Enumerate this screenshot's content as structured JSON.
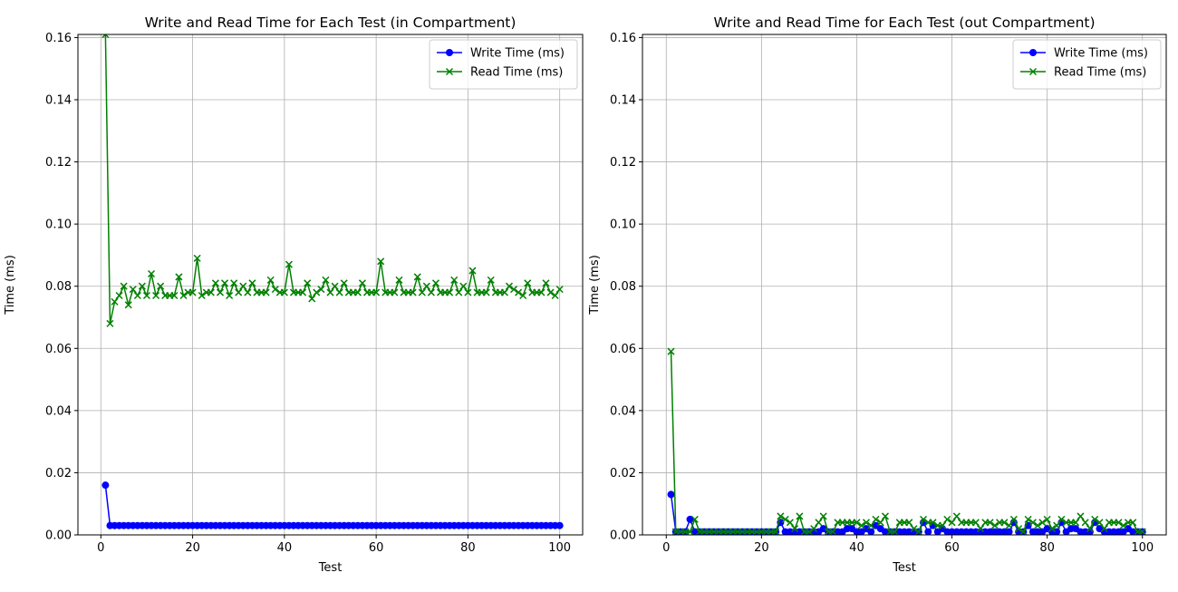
{
  "chart_data": [
    {
      "type": "line",
      "title": "Write and Read Time for Each Test (in Compartment)",
      "xlabel": "Test",
      "ylabel": "Time (ms)",
      "xlim": [
        -5,
        105
      ],
      "ylim": [
        0,
        0.161
      ],
      "xticks": [
        0,
        20,
        40,
        60,
        80,
        100
      ],
      "xtick_labels": [
        "0",
        "20",
        "40",
        "60",
        "80",
        "100"
      ],
      "yticks": [
        0.0,
        0.02,
        0.04,
        0.06,
        0.08,
        0.1,
        0.12,
        0.14,
        0.16
      ],
      "ytick_labels": [
        "0.00",
        "0.02",
        "0.04",
        "0.06",
        "0.08",
        "0.10",
        "0.12",
        "0.14",
        "0.16"
      ],
      "grid": true,
      "legend_position": "top-right",
      "x_start": 1,
      "series": [
        {
          "name": "Write Time (ms)",
          "color": "#0000ff",
          "marker": "circle",
          "values": [
            0.016,
            0.003,
            0.003,
            0.003,
            0.003,
            0.003,
            0.003,
            0.003,
            0.003,
            0.003,
            0.003,
            0.003,
            0.003,
            0.003,
            0.003,
            0.003,
            0.003,
            0.003,
            0.003,
            0.003,
            0.003,
            0.003,
            0.003,
            0.003,
            0.003,
            0.003,
            0.003,
            0.003,
            0.003,
            0.003,
            0.003,
            0.003,
            0.003,
            0.003,
            0.003,
            0.003,
            0.003,
            0.003,
            0.003,
            0.003,
            0.003,
            0.003,
            0.003,
            0.003,
            0.003,
            0.003,
            0.003,
            0.003,
            0.003,
            0.003,
            0.003,
            0.003,
            0.003,
            0.003,
            0.003,
            0.003,
            0.003,
            0.003,
            0.003,
            0.003,
            0.003,
            0.003,
            0.003,
            0.003,
            0.003,
            0.003,
            0.003,
            0.003,
            0.003,
            0.003,
            0.003,
            0.003,
            0.003,
            0.003,
            0.003,
            0.003,
            0.003,
            0.003,
            0.003,
            0.003,
            0.003,
            0.003,
            0.003,
            0.003,
            0.003,
            0.003,
            0.003,
            0.003,
            0.003,
            0.003,
            0.003,
            0.003,
            0.003,
            0.003,
            0.003,
            0.003,
            0.003,
            0.003,
            0.003,
            0.003
          ]
        },
        {
          "name": "Read Time (ms)",
          "color": "#008000",
          "marker": "x",
          "values": [
            0.161,
            0.068,
            0.075,
            0.077,
            0.08,
            0.074,
            0.079,
            0.077,
            0.08,
            0.077,
            0.084,
            0.077,
            0.08,
            0.077,
            0.077,
            0.077,
            0.083,
            0.077,
            0.078,
            0.078,
            0.089,
            0.077,
            0.078,
            0.078,
            0.081,
            0.078,
            0.081,
            0.077,
            0.081,
            0.078,
            0.08,
            0.078,
            0.081,
            0.078,
            0.078,
            0.078,
            0.082,
            0.079,
            0.078,
            0.078,
            0.087,
            0.078,
            0.078,
            0.078,
            0.081,
            0.076,
            0.078,
            0.079,
            0.082,
            0.078,
            0.08,
            0.078,
            0.081,
            0.078,
            0.078,
            0.078,
            0.081,
            0.078,
            0.078,
            0.078,
            0.088,
            0.078,
            0.078,
            0.078,
            0.082,
            0.078,
            0.078,
            0.078,
            0.083,
            0.078,
            0.08,
            0.078,
            0.081,
            0.078,
            0.078,
            0.078,
            0.082,
            0.078,
            0.08,
            0.078,
            0.085,
            0.078,
            0.078,
            0.078,
            0.082,
            0.078,
            0.078,
            0.078,
            0.08,
            0.079,
            0.078,
            0.077,
            0.081,
            0.078,
            0.078,
            0.078,
            0.081,
            0.078,
            0.077,
            0.079
          ]
        }
      ]
    },
    {
      "type": "line",
      "title": "Write and Read Time for Each Test (out Compartment)",
      "xlabel": "Test",
      "ylabel": "Time (ms)",
      "xlim": [
        -5,
        105
      ],
      "ylim": [
        0,
        0.161
      ],
      "xticks": [
        0,
        20,
        40,
        60,
        80,
        100
      ],
      "xtick_labels": [
        "0",
        "20",
        "40",
        "60",
        "80",
        "100"
      ],
      "yticks": [
        0.0,
        0.02,
        0.04,
        0.06,
        0.08,
        0.1,
        0.12,
        0.14,
        0.16
      ],
      "ytick_labels": [
        "0.00",
        "0.02",
        "0.04",
        "0.06",
        "0.08",
        "0.10",
        "0.12",
        "0.14",
        "0.16"
      ],
      "grid": true,
      "legend_position": "top-right",
      "x_start": 1,
      "series": [
        {
          "name": "Write Time (ms)",
          "color": "#0000ff",
          "marker": "circle",
          "values": [
            0.013,
            0.001,
            0.001,
            0.001,
            0.005,
            0.001,
            0.001,
            0.001,
            0.001,
            0.001,
            0.001,
            0.001,
            0.001,
            0.001,
            0.001,
            0.001,
            0.001,
            0.001,
            0.001,
            0.001,
            0.001,
            0.001,
            0.001,
            0.004,
            0.001,
            0.001,
            0.001,
            0.001,
            0.001,
            0.001,
            0.001,
            0.001,
            0.002,
            0.001,
            0.001,
            0.001,
            0.001,
            0.002,
            0.002,
            0.001,
            0.001,
            0.002,
            0.001,
            0.003,
            0.002,
            0.001,
            0.001,
            0.001,
            0.001,
            0.001,
            0.001,
            0.001,
            0.001,
            0.004,
            0.001,
            0.003,
            0.001,
            0.002,
            0.001,
            0.001,
            0.001,
            0.001,
            0.001,
            0.001,
            0.001,
            0.001,
            0.001,
            0.001,
            0.001,
            0.001,
            0.001,
            0.001,
            0.004,
            0.001,
            0.001,
            0.003,
            0.001,
            0.001,
            0.001,
            0.002,
            0.001,
            0.001,
            0.004,
            0.001,
            0.002,
            0.002,
            0.001,
            0.001,
            0.001,
            0.004,
            0.002,
            0.001,
            0.001,
            0.001,
            0.001,
            0.001,
            0.002,
            0.001,
            0.001,
            0.001
          ]
        },
        {
          "name": "Read Time (ms)",
          "color": "#008000",
          "marker": "x",
          "values": [
            0.059,
            0.001,
            0.001,
            0.001,
            0.001,
            0.005,
            0.001,
            0.001,
            0.001,
            0.001,
            0.001,
            0.001,
            0.001,
            0.001,
            0.001,
            0.001,
            0.001,
            0.001,
            0.001,
            0.001,
            0.001,
            0.001,
            0.001,
            0.006,
            0.005,
            0.004,
            0.002,
            0.006,
            0.001,
            0.001,
            0.002,
            0.004,
            0.006,
            0.001,
            0.001,
            0.004,
            0.004,
            0.004,
            0.004,
            0.004,
            0.003,
            0.004,
            0.003,
            0.005,
            0.004,
            0.006,
            0.001,
            0.001,
            0.004,
            0.004,
            0.004,
            0.002,
            0.001,
            0.005,
            0.004,
            0.004,
            0.003,
            0.003,
            0.005,
            0.004,
            0.006,
            0.004,
            0.004,
            0.004,
            0.004,
            0.002,
            0.004,
            0.004,
            0.003,
            0.004,
            0.004,
            0.003,
            0.005,
            0.002,
            0.001,
            0.005,
            0.004,
            0.003,
            0.004,
            0.005,
            0.002,
            0.003,
            0.005,
            0.004,
            0.004,
            0.004,
            0.006,
            0.004,
            0.002,
            0.005,
            0.004,
            0.002,
            0.004,
            0.004,
            0.004,
            0.003,
            0.004,
            0.004,
            0.001,
            0.001
          ]
        }
      ]
    }
  ]
}
